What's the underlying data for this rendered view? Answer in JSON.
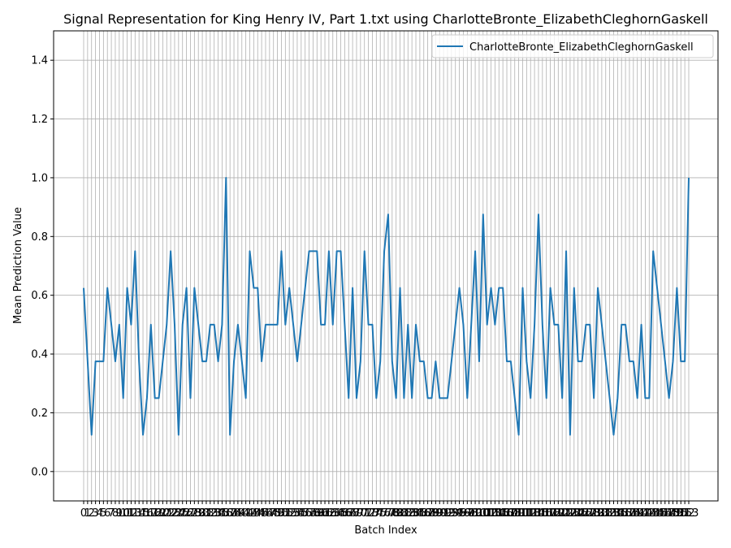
{
  "chart_data": {
    "type": "line",
    "title": "Signal Representation for King Henry IV, Part 1.txt using CharlotteBronte_ElizabethCleghornGaskell",
    "xlabel": "Batch Index",
    "ylabel": "Mean Prediction Value",
    "ylim": [
      -0.1,
      1.5
    ],
    "yticks": [
      "0.0",
      "0.2",
      "0.4",
      "0.6",
      "0.8",
      "1.0",
      "1.2",
      "1.4"
    ],
    "grid": true,
    "legend_position": "top-right",
    "series_color": "#1f77b4",
    "series": [
      {
        "name": "CharlotteBronte_ElizabethCleghornGaskell",
        "values": [
          0.625,
          0.375,
          0.125,
          0.375,
          0.375,
          0.375,
          0.625,
          0.5,
          0.375,
          0.5,
          0.25,
          0.625,
          0.5,
          0.75,
          0.375,
          0.125,
          0.25,
          0.5,
          0.25,
          0.25,
          0.375,
          0.5,
          0.75,
          0.5,
          0.125,
          0.5,
          0.625,
          0.25,
          0.625,
          0.5,
          0.375,
          0.375,
          0.5,
          0.5,
          0.375,
          0.5,
          1.0,
          0.125,
          0.375,
          0.5,
          0.375,
          0.25,
          0.75,
          0.625,
          0.625,
          0.375,
          0.5,
          0.5,
          0.5,
          0.5,
          0.75,
          0.5,
          0.625,
          0.5,
          0.375,
          0.5,
          0.625,
          0.75,
          0.75,
          0.75,
          0.5,
          0.5,
          0.75,
          0.5,
          0.75,
          0.75,
          0.5,
          0.25,
          0.625,
          0.25,
          0.375,
          0.75,
          0.5,
          0.5,
          0.25,
          0.375,
          0.75,
          0.875,
          0.375,
          0.25,
          0.625,
          0.25,
          0.5,
          0.25,
          0.5,
          0.375,
          0.375,
          0.25,
          0.25,
          0.375,
          0.25,
          0.25,
          0.25,
          0.375,
          0.5,
          0.625,
          0.5,
          0.25,
          0.5,
          0.75,
          0.375,
          0.875,
          0.5,
          0.625,
          0.5,
          0.625,
          0.625,
          0.375,
          0.375,
          0.25,
          0.125,
          0.625,
          0.375,
          0.25,
          0.5,
          0.875,
          0.5,
          0.25,
          0.625,
          0.5,
          0.5,
          0.25,
          0.75,
          0.125,
          0.625,
          0.375,
          0.375,
          0.5,
          0.5,
          0.25,
          0.625,
          0.5,
          0.375,
          0.25,
          0.125,
          0.25,
          0.5,
          0.5,
          0.375,
          0.375,
          0.25,
          0.5,
          0.25,
          0.25,
          0.75,
          0.625,
          0.5,
          0.375,
          0.25,
          0.375,
          0.625,
          0.375,
          0.375,
          1.0
        ]
      }
    ]
  }
}
